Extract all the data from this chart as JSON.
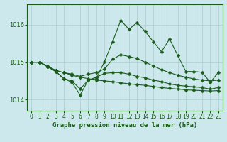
{
  "title": "Graphe pression niveau de la mer (hPa)",
  "xlim": [
    -0.5,
    23.5
  ],
  "ylim": [
    1013.7,
    1016.55
  ],
  "yticks": [
    1014,
    1015,
    1016
  ],
  "xticks": [
    0,
    1,
    2,
    3,
    4,
    5,
    6,
    7,
    8,
    9,
    10,
    11,
    12,
    13,
    14,
    15,
    16,
    17,
    18,
    19,
    20,
    21,
    22,
    23
  ],
  "bg_color": "#cce8ec",
  "grid_color": "#aacccc",
  "line_color": "#1a5c1a",
  "lines": [
    [
      1015.0,
      1015.0,
      1014.9,
      1014.78,
      1014.72,
      1014.65,
      1014.6,
      1014.56,
      1014.52,
      1014.5,
      1014.48,
      1014.45,
      1014.42,
      1014.4,
      1014.38,
      1014.35,
      1014.32,
      1014.3,
      1014.28,
      1014.26,
      1014.25,
      1014.24,
      1014.23,
      1014.24
    ],
    [
      1015.0,
      1015.0,
      1014.88,
      1014.75,
      1014.56,
      1014.46,
      1014.12,
      1014.52,
      1014.56,
      1015.02,
      1015.55,
      1016.12,
      1015.88,
      1016.06,
      1015.82,
      1015.55,
      1015.28,
      1015.62,
      1015.18,
      1014.75,
      1014.75,
      1014.73,
      1014.46,
      1014.73
    ],
    [
      1015.0,
      1015.0,
      1014.88,
      1014.78,
      1014.72,
      1014.68,
      1014.62,
      1014.68,
      1014.72,
      1014.82,
      1015.08,
      1015.2,
      1015.15,
      1015.1,
      1015.0,
      1014.9,
      1014.8,
      1014.72,
      1014.65,
      1014.6,
      1014.55,
      1014.52,
      1014.5,
      1014.52
    ],
    [
      1015.0,
      1015.0,
      1014.88,
      1014.75,
      1014.56,
      1014.5,
      1014.28,
      1014.52,
      1014.6,
      1014.7,
      1014.72,
      1014.72,
      1014.68,
      1014.62,
      1014.58,
      1014.52,
      1014.48,
      1014.42,
      1014.38,
      1014.36,
      1014.34,
      1014.32,
      1014.28,
      1014.32
    ]
  ],
  "marker_size": 2.5,
  "line_width": 0.8
}
